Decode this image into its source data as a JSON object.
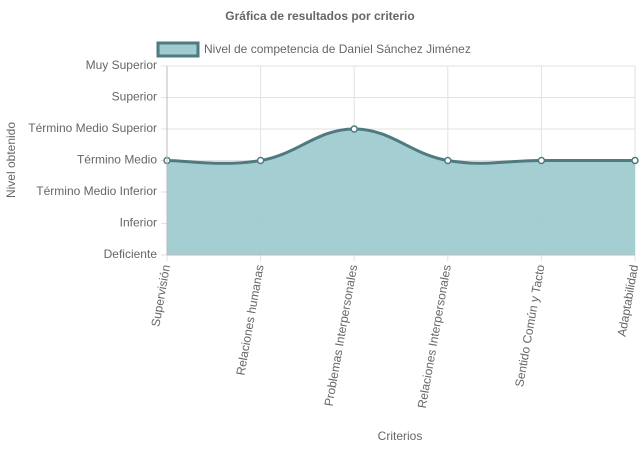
{
  "chart_data": {
    "type": "line",
    "title": "Gráfica de resultados por criterio",
    "x_label": "Criterios",
    "y_label": "Nivel obtenido",
    "categories": [
      "Supervisión",
      "Relaciones humanas",
      "Problemas Interpersonales",
      "Relaciones Interpersonales",
      "Sentido Común y Tacto",
      "Adaptabilidad"
    ],
    "series": [
      {
        "name": "Nivel de competencia de Daniel Sánchez Jiménez",
        "color": "#4e7a80",
        "fill_color": "#a0cbd0",
        "values": [
          3,
          3,
          4,
          3,
          3,
          3
        ]
      }
    ],
    "ylim": [
      0,
      6
    ],
    "yticks": [
      {
        "value": 0,
        "label": "Deficiente"
      },
      {
        "value": 1,
        "label": "Inferior"
      },
      {
        "value": 2,
        "label": "Término Medio Inferior"
      },
      {
        "value": 3,
        "label": "Término Medio"
      },
      {
        "value": 4,
        "label": "Término Medio Superior"
      },
      {
        "value": 5,
        "label": "Superior"
      },
      {
        "value": 6,
        "label": "Muy Superior"
      }
    ],
    "grid": true,
    "legend": "top"
  }
}
